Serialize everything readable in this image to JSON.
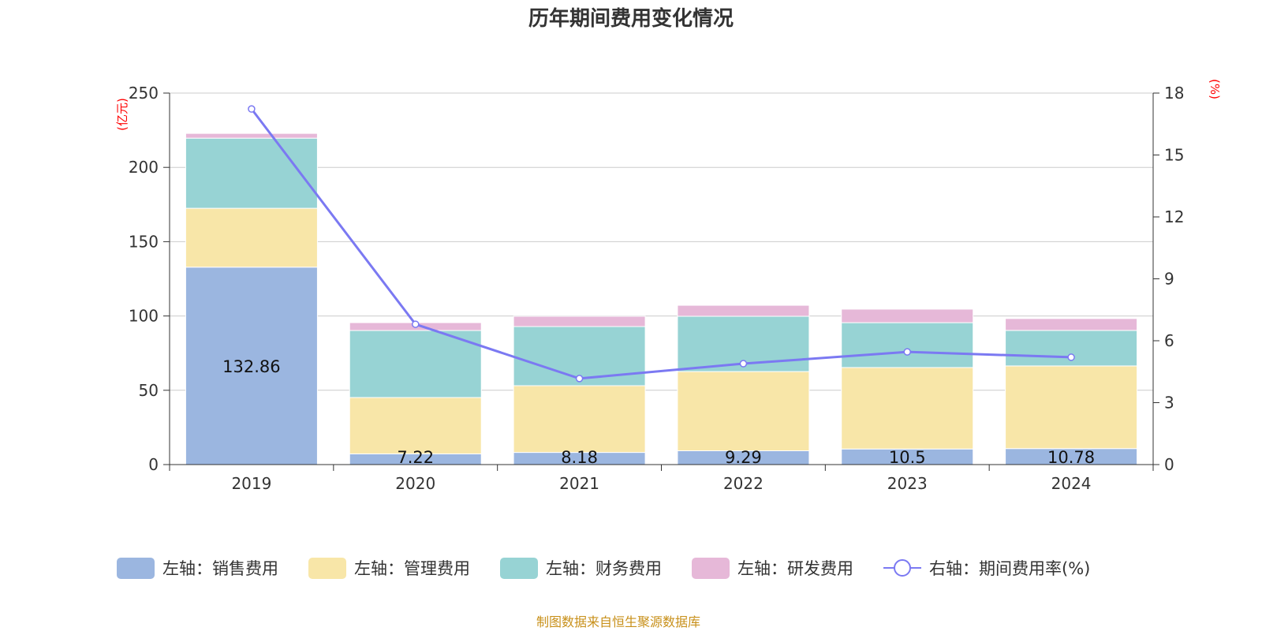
{
  "chart_data": {
    "type": "bar",
    "title": "历年期间费用变化情况",
    "categories": [
      "2019",
      "2020",
      "2021",
      "2022",
      "2023",
      "2024"
    ],
    "y_left": {
      "label": "(亿元)",
      "range": [
        0,
        250
      ],
      "ticks": [
        0,
        50,
        100,
        150,
        200,
        250
      ]
    },
    "y_right": {
      "label": "(%)",
      "range": [
        0,
        18
      ],
      "ticks": [
        0,
        3,
        6,
        9,
        12,
        15,
        18
      ]
    },
    "series": [
      {
        "name": "左轴：销售费用",
        "kind": "bar",
        "axis": "left",
        "color": "#9bb6e0",
        "values": [
          132.86,
          7.22,
          8.18,
          9.29,
          10.5,
          10.78
        ],
        "labels": [
          "132.86",
          "7.22",
          "8.18",
          "9.29",
          "10.5",
          "10.78"
        ]
      },
      {
        "name": "左轴：管理费用",
        "kind": "bar",
        "axis": "left",
        "color": "#f8e6a8",
        "values": [
          39.6,
          37.9,
          44.9,
          53.3,
          54.8,
          55.6
        ]
      },
      {
        "name": "左轴：财务费用",
        "kind": "bar",
        "axis": "left",
        "color": "#97d3d4",
        "values": [
          47.2,
          45.1,
          39.8,
          37.2,
          30.2,
          23.9
        ]
      },
      {
        "name": "左轴：研发费用",
        "kind": "bar",
        "axis": "left",
        "color": "#e6b8d8",
        "values": [
          3.2,
          5.3,
          6.9,
          7.4,
          9.1,
          8.0
        ]
      },
      {
        "name": "右轴：期间费用率(%)",
        "kind": "line",
        "axis": "right",
        "color": "#7b79f2",
        "values": [
          17.23,
          6.8,
          4.17,
          4.89,
          5.46,
          5.2
        ]
      }
    ],
    "grid": true,
    "legend_position": "bottom"
  },
  "source": "制图数据来自恒生聚源数据库"
}
